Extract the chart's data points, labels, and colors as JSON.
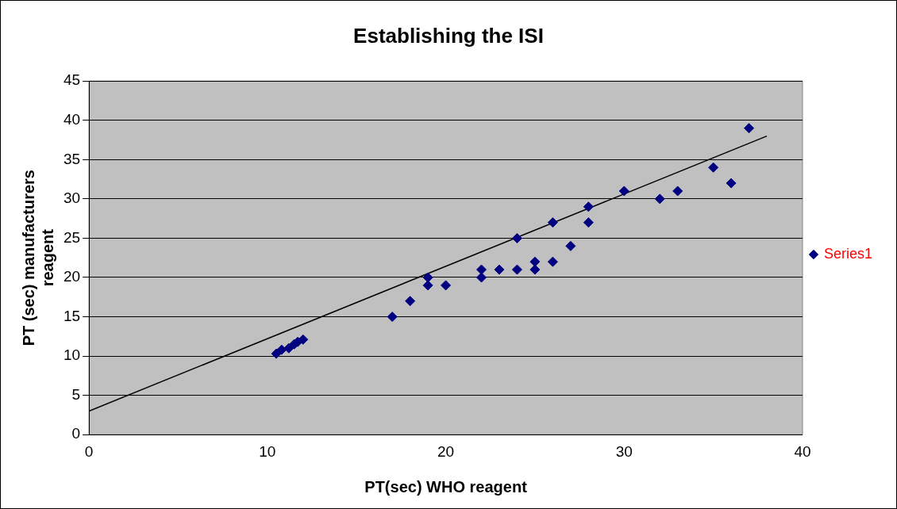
{
  "chart_data": {
    "type": "scatter",
    "title": "Establishing the ISI",
    "xlabel": "PT(sec) WHO reagent",
    "ylabel": "PT (sec) manufacturers reagent",
    "xlim": [
      0,
      40
    ],
    "xticks": [
      0,
      10,
      20,
      30,
      40
    ],
    "ylim": [
      0,
      45
    ],
    "yticks": [
      0,
      5,
      10,
      15,
      20,
      25,
      30,
      35,
      40,
      45
    ],
    "grid": "y",
    "legend": "right",
    "marker": "diamond",
    "series": [
      {
        "name": "Series1",
        "color": "#000080",
        "x": [
          10.5,
          10.8,
          11.2,
          11.5,
          11.7,
          12,
          17,
          18,
          19,
          19,
          20,
          22,
          22,
          23,
          24,
          24,
          25,
          25,
          26,
          26,
          27,
          28,
          28,
          30,
          32,
          33,
          35,
          36,
          37
        ],
        "values": [
          10.3,
          10.8,
          11,
          11.5,
          11.8,
          12.1,
          15,
          17,
          19,
          20,
          19,
          20,
          21,
          21,
          21,
          25,
          21,
          22,
          22,
          27,
          24,
          27,
          29,
          31,
          30,
          31,
          34,
          32,
          39
        ]
      },
      {
        "type": "line",
        "marker": "none",
        "color": "#000000",
        "x": [
          0,
          38
        ],
        "values": [
          3,
          38
        ]
      }
    ]
  }
}
